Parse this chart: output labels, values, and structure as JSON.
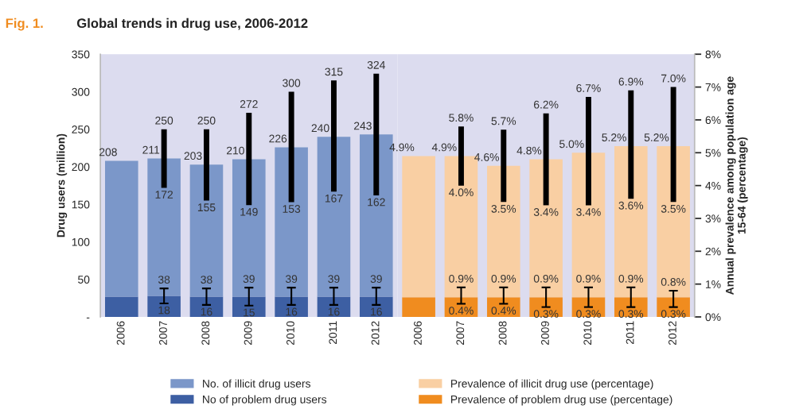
{
  "chart_data": [
    {
      "type": "bar",
      "title": "Global trends in drug use, 2006-2012",
      "annotations": [
        "Fig. 1.",
        {
          "text": "250",
          "x": "2007",
          "y": 250
        },
        {
          "text": "172",
          "x": "2007",
          "y": 172
        },
        {
          "text": "38",
          "x": "2007",
          "y": 38
        },
        {
          "text": "18",
          "x": "2007",
          "y": 18
        },
        {
          "text": "250",
          "x": "2008",
          "y": 250
        },
        {
          "text": "155",
          "x": "2008",
          "y": 155
        },
        {
          "text": "38",
          "x": "2008",
          "y": 38
        },
        {
          "text": "16",
          "x": "2008",
          "y": 16
        },
        {
          "text": "272",
          "x": "2009",
          "y": 272
        },
        {
          "text": "149",
          "x": "2009",
          "y": 149
        },
        {
          "text": "39",
          "x": "2009",
          "y": 39
        },
        {
          "text": "15",
          "x": "2009",
          "y": 15
        },
        {
          "text": "300",
          "x": "2010",
          "y": 300
        },
        {
          "text": "153",
          "x": "2010",
          "y": 153
        },
        {
          "text": "39",
          "x": "2010",
          "y": 39
        },
        {
          "text": "16",
          "x": "2010",
          "y": 16
        },
        {
          "text": "315",
          "x": "2011",
          "y": 315
        },
        {
          "text": "167",
          "x": "2011",
          "y": 167
        },
        {
          "text": "39",
          "x": "2011",
          "y": 39
        },
        {
          "text": "16",
          "x": "2011",
          "y": 16
        },
        {
          "text": "324",
          "x": "2012",
          "y": 324
        },
        {
          "text": "162",
          "x": "2012",
          "y": 162
        },
        {
          "text": "39",
          "x": "2012",
          "y": 39
        },
        {
          "text": "16",
          "x": "2012",
          "y": 16
        }
      ],
      "ylabel": "Drug users (million)",
      "categories": [
        "2006",
        "2007",
        "2008",
        "2009",
        "2010",
        "2011",
        "2012"
      ],
      "stacked": true,
      "series": [
        {
          "name": "No of problem drug users",
          "color": "#3d5fa3",
          "values": [
            27,
            28,
            27,
            27,
            27,
            27,
            27
          ],
          "errors": [
            null,
            [
              18,
              38
            ],
            [
              16,
              38
            ],
            [
              15,
              39
            ],
            [
              16,
              39
            ],
            [
              16,
              39
            ],
            [
              16,
              39
            ]
          ]
        },
        {
          "name": "No. of illicit drug users",
          "color": "#7b97c9",
          "values": [
            181,
            183,
            176,
            183,
            199,
            213,
            216
          ],
          "errors": [
            null,
            [
              172,
              250
            ],
            [
              155,
              250
            ],
            [
              149,
              272
            ],
            [
              153,
              300
            ],
            [
              167,
              315
            ],
            [
              162,
              324
            ]
          ]
        }
      ],
      "totals": [
        "208",
        "211",
        "203",
        "210",
        "226",
        "240",
        "243"
      ],
      "ylim": [
        0,
        350
      ],
      "yticks": [
        {
          "value": 0,
          "label": "-"
        },
        50,
        100,
        150,
        200,
        250,
        300,
        350
      ],
      "legend": "bottom"
    },
    {
      "type": "bar",
      "annotations": [
        {
          "text": "5.8%",
          "x": "2007",
          "y": 5.8
        },
        {
          "text": "4.0%",
          "x": "2007",
          "y": 4.0
        },
        {
          "text": "0.9%",
          "x": "2007",
          "y": 0.9
        },
        {
          "text": "0.4%",
          "x": "2007",
          "y": 0.4
        },
        {
          "text": "5.7%",
          "x": "2008",
          "y": 5.7
        },
        {
          "text": "3.5%",
          "x": "2008",
          "y": 3.5
        },
        {
          "text": "0.9%",
          "x": "2008",
          "y": 0.9
        },
        {
          "text": "0.4%",
          "x": "2008",
          "y": 0.4
        },
        {
          "text": "6.2%",
          "x": "2009",
          "y": 6.2
        },
        {
          "text": "3.4%",
          "x": "2009",
          "y": 3.4
        },
        {
          "text": "0.9%",
          "x": "2009",
          "y": 0.9
        },
        {
          "text": "0.3%",
          "x": "2009",
          "y": 0.3
        },
        {
          "text": "6.7%",
          "x": "2010",
          "y": 6.7
        },
        {
          "text": "3.4%",
          "x": "2010",
          "y": 3.4
        },
        {
          "text": "0.9%",
          "x": "2010",
          "y": 0.9
        },
        {
          "text": "0.3%",
          "x": "2010",
          "y": 0.3
        },
        {
          "text": "6.9%",
          "x": "2011",
          "y": 6.9
        },
        {
          "text": "3.6%",
          "x": "2011",
          "y": 3.6
        },
        {
          "text": "0.9%",
          "x": "2011",
          "y": 0.9
        },
        {
          "text": "0.3%",
          "x": "2011",
          "y": 0.3
        },
        {
          "text": "7.0%",
          "x": "2012",
          "y": 7.0
        },
        {
          "text": "3.5%",
          "x": "2012",
          "y": 3.5
        },
        {
          "text": "0.8%",
          "x": "2012",
          "y": 0.8
        },
        {
          "text": "0.3%",
          "x": "2012",
          "y": 0.3
        }
      ],
      "ylabel": "Annual prevalence among population age\n15-64 (percentage)",
      "categories": [
        "2006",
        "2007",
        "2008",
        "2009",
        "2010",
        "2011",
        "2012"
      ],
      "stacked": true,
      "series": [
        {
          "name": "Prevalence of problem drug use (percentage)",
          "color": "#f08c1f",
          "values": [
            0.6,
            0.6,
            0.6,
            0.6,
            0.6,
            0.6,
            0.6
          ],
          "errors": [
            null,
            [
              0.4,
              0.9
            ],
            [
              0.4,
              0.9
            ],
            [
              0.3,
              0.9
            ],
            [
              0.3,
              0.9
            ],
            [
              0.3,
              0.9
            ],
            [
              0.3,
              0.8
            ]
          ]
        },
        {
          "name": "Prevalence of illicit drug use (percentage)",
          "color": "#f9cfa3",
          "values": [
            4.3,
            4.3,
            4.0,
            4.2,
            4.4,
            4.6,
            4.6
          ],
          "errors": [
            null,
            [
              4.0,
              5.8
            ],
            [
              3.5,
              5.7
            ],
            [
              3.4,
              6.2
            ],
            [
              3.4,
              6.7
            ],
            [
              3.6,
              6.9
            ],
            [
              3.5,
              7.0
            ]
          ]
        }
      ],
      "totals": [
        "4.9%",
        "4.9%",
        "4.6%",
        "4.8%",
        "5.0%",
        "5.2%",
        "5.2%"
      ],
      "ylim": [
        0,
        8
      ],
      "yticks": [
        {
          "value": 0,
          "label": "0%"
        },
        {
          "value": 1,
          "label": "1%"
        },
        {
          "value": 2,
          "label": "2%"
        },
        {
          "value": 3,
          "label": "3%"
        },
        {
          "value": 4,
          "label": "4%"
        },
        {
          "value": 5,
          "label": "5%"
        },
        {
          "value": 6,
          "label": "6%"
        },
        {
          "value": 7,
          "label": "7%"
        },
        {
          "value": 8,
          "label": "8%"
        }
      ],
      "legend": "bottom"
    }
  ]
}
